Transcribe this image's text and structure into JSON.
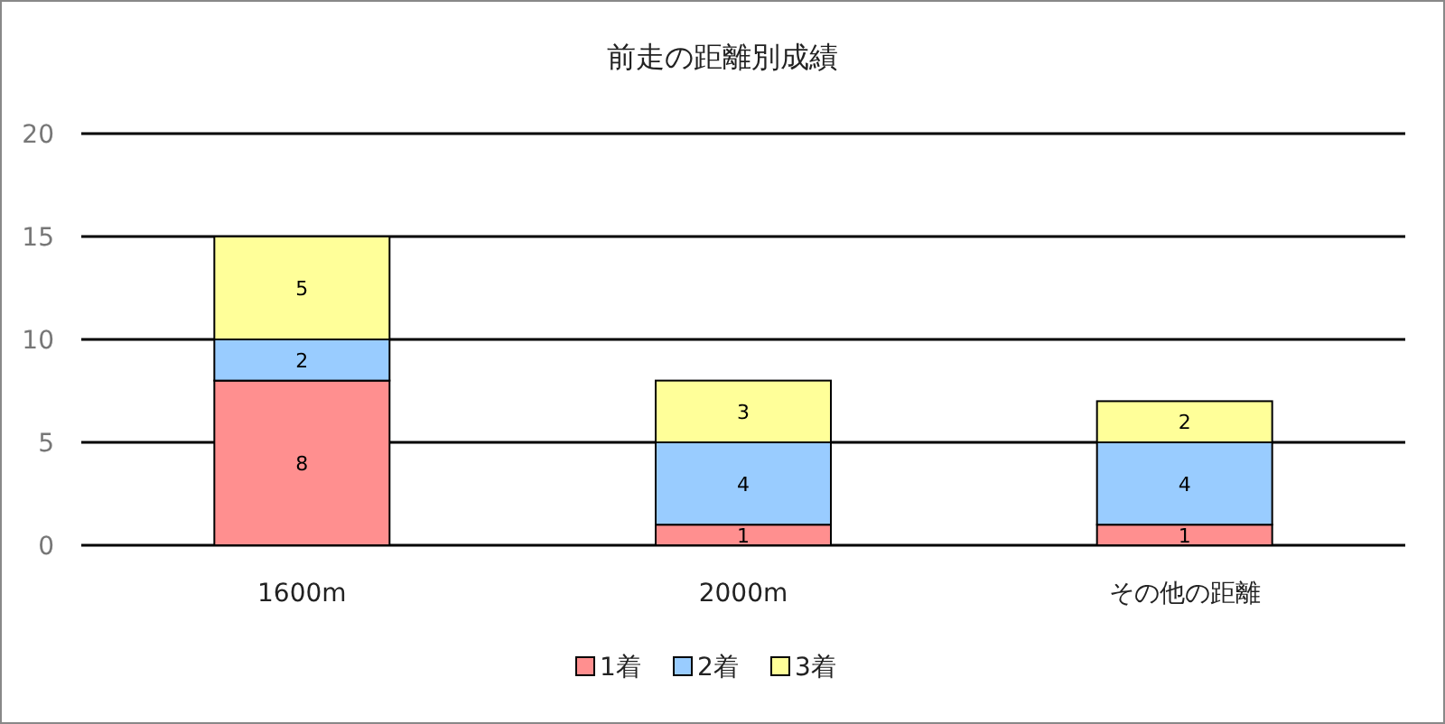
{
  "chart_data": {
    "type": "bar",
    "title": "前走の距離別成績",
    "categories": [
      "1600m",
      "2000m",
      "その他の距離"
    ],
    "stacked": true,
    "data_labels": true,
    "legend": "bottom",
    "grid": "y",
    "ylim": [
      0,
      20
    ],
    "yticks": [
      0,
      5,
      10,
      15,
      20
    ],
    "series": [
      {
        "name": "1着",
        "color": "#ff8f8f",
        "values": [
          8,
          1,
          1
        ]
      },
      {
        "name": "2着",
        "color": "#99ccff",
        "values": [
          2,
          4,
          4
        ]
      },
      {
        "name": "3着",
        "color": "#ffff99",
        "values": [
          5,
          3,
          2
        ]
      }
    ]
  }
}
